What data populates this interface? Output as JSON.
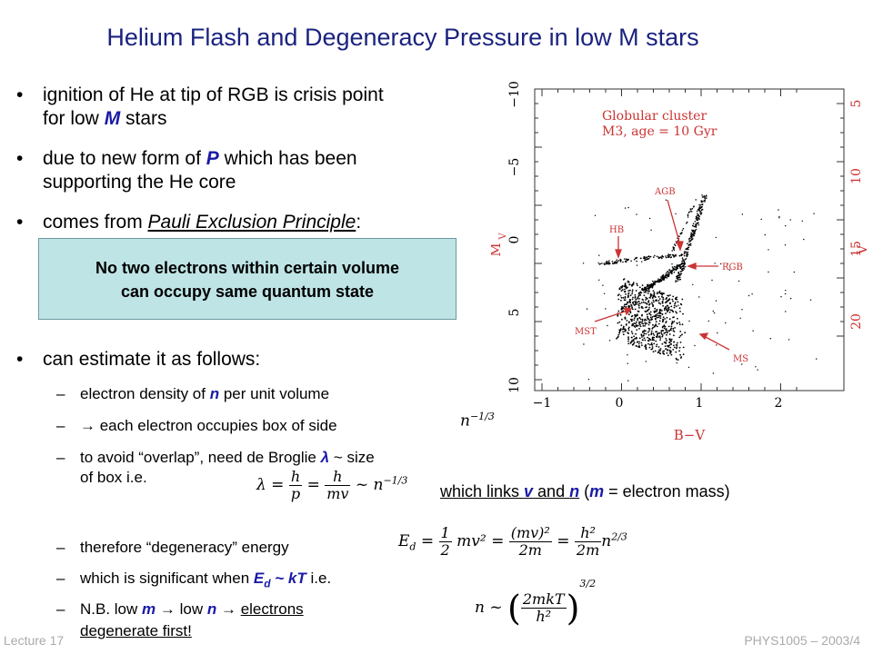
{
  "title": "Helium Flash and Degeneracy Pressure in low M stars",
  "bullets": {
    "b1_line1": "ignition of He at tip of RGB is crisis point",
    "b1_line2_pre": "for low ",
    "b1_line2_m": "M",
    "b1_line2_post": " stars",
    "b2_line1_pre": "due to new form of ",
    "b2_line1_p": "P",
    "b2_line1_post": " which has been",
    "b2_line2": "supporting the He core",
    "b3_pre": "comes from ",
    "b3_link": "Pauli Exclusion Principle",
    "b3_post": ":",
    "b4": "can estimate it as follows:"
  },
  "box": {
    "line1": "No two electrons within certain volume",
    "line2": "can occupy same quantum state"
  },
  "subitems": {
    "s1_pre": "electron density of ",
    "s1_n": "n",
    "s1_post": " per unit volume",
    "s2_arrow": "→",
    "s2_text": " each electron occupies box of side",
    "s3_line1_pre": "to avoid “overlap”, need de Broglie ",
    "s3_lambda": "λ",
    "s3_line1_post": " ~ size",
    "s3_line2": "of box   i.e.",
    "s4": "therefore “degeneracy” energy",
    "s5_pre": "which is significant when ",
    "s5_e": "E",
    "s5_d": "d",
    "s5_post": " ~ kT",
    "s5_ie": "  i.e.",
    "s6_pre": "N.B. low ",
    "s6_m": "m",
    "s6_arrow1": " → ",
    "s6_low": "low ",
    "s6_n": "n",
    "s6_arrow2": " → ",
    "s6_u1": "electrons",
    "s6_u2": "degenerate first!"
  },
  "links_note": {
    "pre": "which links ",
    "v": "v",
    "and": " and ",
    "n": "n",
    "open": " (",
    "m": "m",
    "post": " = electron mass)"
  },
  "plot": {
    "label": "Globular cluster",
    "label2": "M3, age = 10 Gyr",
    "ann_agb": "AGB",
    "ann_hb": "HB",
    "ann_rgb": "RGB",
    "ann_mst": "MST",
    "ann_ms": "MS",
    "xlabel": "B−V",
    "ylabel_left": "M",
    "ylabel_left_sub": "V",
    "ylabel_right": "V",
    "left_ticks": [
      "−10",
      "−5",
      "0",
      "5",
      "10"
    ],
    "right_ticks": [
      "5",
      "10",
      "15",
      "20"
    ],
    "bottom_ticks": [
      "−1",
      "0",
      "1",
      "2"
    ],
    "accent": "#cc3333"
  },
  "equations": {
    "eq_n": "n",
    "eq_n_exp": "−1/3",
    "lambda": "λ =",
    "h": "h",
    "p": "p",
    "eq": "=",
    "mv": "mv",
    "sim_n": "~ n",
    "exp13": "−1/3",
    "ed": "E",
    "ed_sub": "d",
    "eq1": "=",
    "half_top": "1",
    "half_bot": "2",
    "mv2": "mv² =",
    "mv_sq_top": "(mv)²",
    "two_m": "2m",
    "eq2": "=",
    "h2": "h²",
    "n23": "n",
    "exp23": "2/3",
    "n_sim": "n ~",
    "kt_top": "2mkT",
    "kt_bot": "h²",
    "exp32": "3/2"
  },
  "footer": {
    "left": "Lecture 17",
    "right": "PHYS1005 – 2003/4"
  }
}
